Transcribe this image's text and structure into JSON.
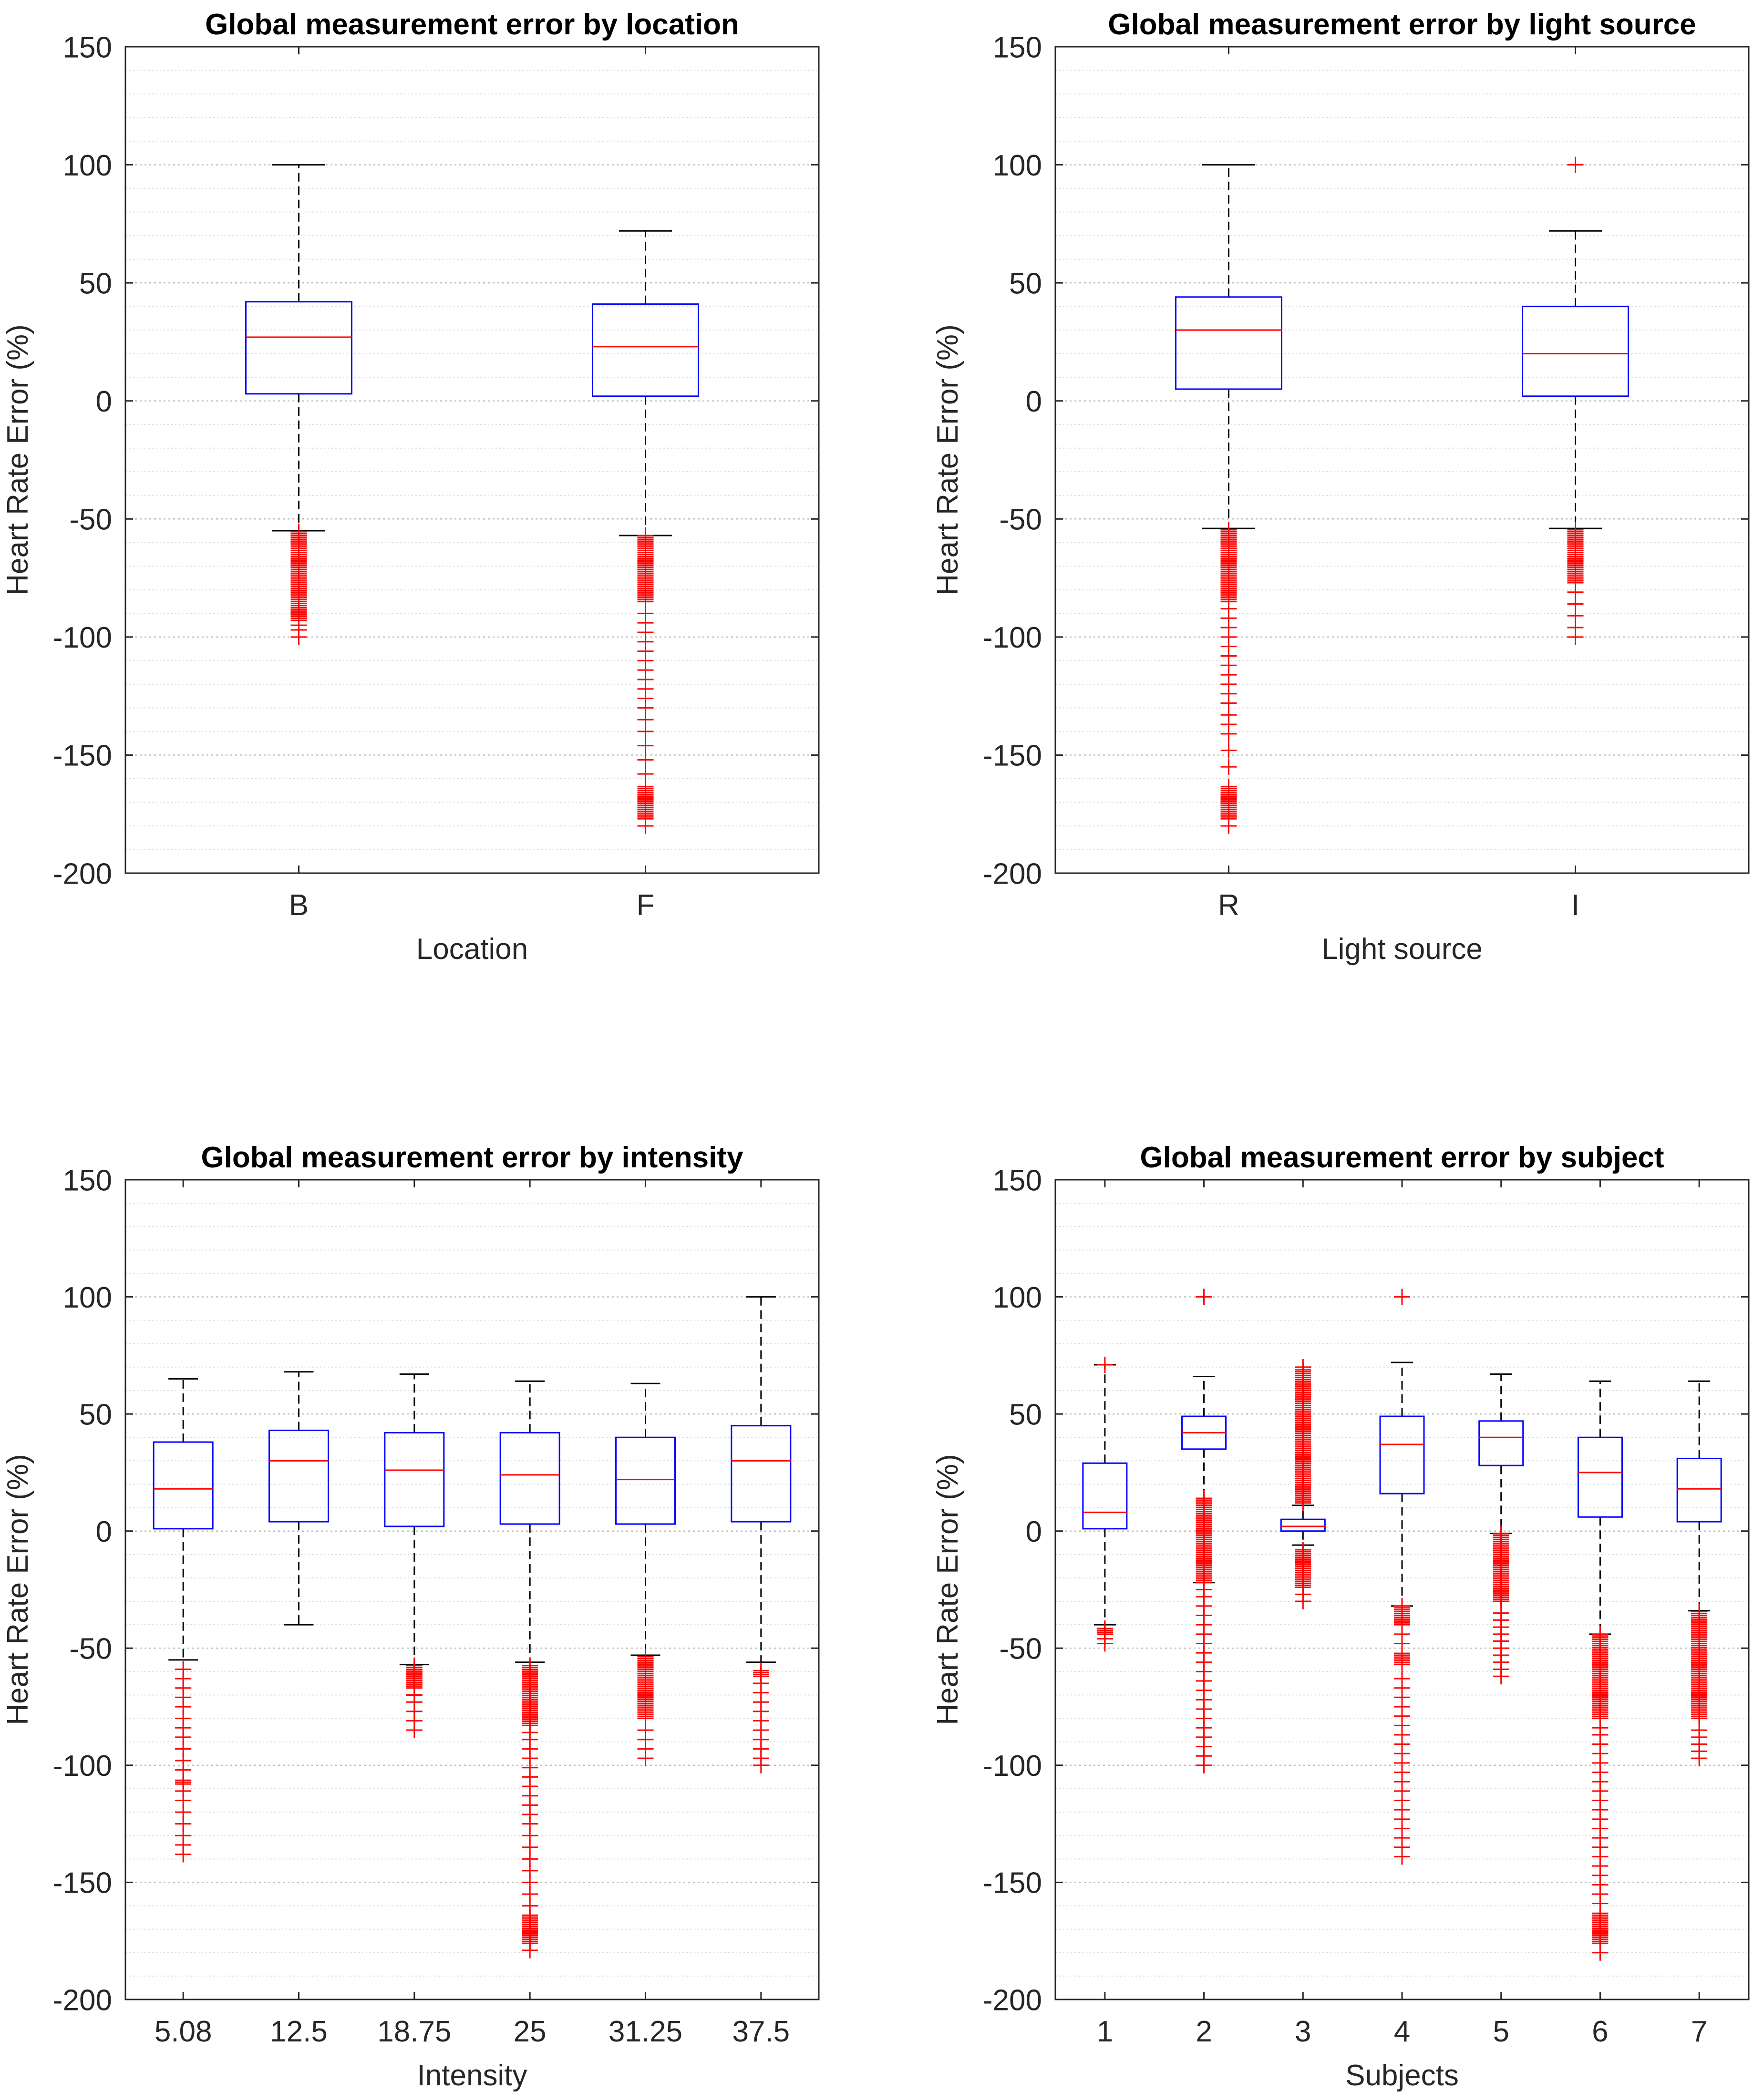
{
  "colors": {
    "box": "#0000ff",
    "median": "#ff0000",
    "outlier": "#ff0000",
    "whisker": "#000000",
    "axis": "#262626",
    "grid_major": "#bdbdbd",
    "grid_minor": "#dcdcdc"
  },
  "chart_data": [
    {
      "type": "box",
      "title": "Global measurement error by location",
      "xlabel": "Location",
      "ylabel": "Heart Rate Error (%)",
      "ylim": [
        -200,
        150
      ],
      "yticks": [
        -200,
        -150,
        -100,
        -50,
        0,
        50,
        100,
        150
      ],
      "grid": "y-major-and-minor",
      "categories": [
        "B",
        "F"
      ],
      "boxes": [
        {
          "whisker_low": -55,
          "q1": 3,
          "median": 27,
          "q3": 42,
          "whisker_high": 100,
          "outliers": {
            "dense": [
              [
                -93,
                -55
              ]
            ],
            "points": [
              -100,
              -97,
              -95
            ]
          }
        },
        {
          "whisker_low": -57,
          "q1": 2,
          "median": 23,
          "q3": 41,
          "whisker_high": 72,
          "outliers": {
            "dense": [
              [
                -177,
                -163
              ],
              [
                -85,
                -57
              ]
            ],
            "points": [
              -180,
              -158,
              -152,
              -146,
              -140,
              -135,
              -130,
              -126,
              -122,
              -118,
              -114,
              -110,
              -106,
              -102,
              -98,
              -94,
              -90
            ]
          }
        }
      ]
    },
    {
      "type": "box",
      "title": "Global measurement error by light source",
      "xlabel": "Light source",
      "ylabel": "Heart Rate Error (%)",
      "ylim": [
        -200,
        150
      ],
      "yticks": [
        -200,
        -150,
        -100,
        -50,
        0,
        50,
        100,
        150
      ],
      "grid": "y-major-and-minor",
      "categories": [
        "R",
        "I"
      ],
      "boxes": [
        {
          "whisker_low": -54,
          "q1": 5,
          "median": 30,
          "q3": 44,
          "whisker_high": 100,
          "outliers": {
            "dense": [
              [
                -177,
                -163
              ],
              [
                -85,
                -54
              ]
            ],
            "points": [
              -180,
              -155,
              -148,
              -141,
              -137,
              -133,
              -128,
              -124,
              -120,
              -116,
              -112,
              -108,
              -104,
              -100,
              -96,
              -92,
              -88
            ]
          }
        },
        {
          "whisker_low": -54,
          "q1": 2,
          "median": 20,
          "q3": 40,
          "whisker_high": 72,
          "outliers": {
            "dense": [
              [
                -77,
                -54
              ]
            ],
            "points": [
              100,
              -100,
              -96,
              -91,
              -86,
              -81
            ]
          }
        }
      ]
    },
    {
      "type": "box",
      "title": "Global measurement error by intensity",
      "xlabel": "Intensity",
      "ylabel": "Heart Rate Error (%)",
      "ylim": [
        -200,
        150
      ],
      "yticks": [
        -200,
        -150,
        -100,
        -50,
        0,
        50,
        100,
        150
      ],
      "grid": "y-major-and-minor",
      "categories": [
        "5.08",
        "12.5",
        "18.75",
        "25",
        "31.25",
        "37.5"
      ],
      "boxes": [
        {
          "whisker_low": -55,
          "q1": 1,
          "median": 18,
          "q3": 38,
          "whisker_high": 65,
          "outliers": {
            "dense": [
              [
                -108,
                -106
              ]
            ],
            "points": [
              -138,
              -134,
              -130,
              -125,
              -120,
              -115,
              -111,
              -102,
              -98,
              -93,
              -88,
              -84,
              -80,
              -75,
              -71,
              -67,
              -63,
              -59
            ]
          }
        },
        {
          "whisker_low": -40,
          "q1": 4,
          "median": 30,
          "q3": 43,
          "whisker_high": 68,
          "outliers": {
            "dense": [],
            "points": []
          }
        },
        {
          "whisker_low": -57,
          "q1": 2,
          "median": 26,
          "q3": 42,
          "whisker_high": 67,
          "outliers": {
            "dense": [
              [
                -67,
                -57
              ]
            ],
            "points": [
              -85,
              -81,
              -77,
              -73,
              -70
            ]
          }
        },
        {
          "whisker_low": -56,
          "q1": 3,
          "median": 24,
          "q3": 42,
          "whisker_high": 64,
          "outliers": {
            "dense": [
              [
                -176,
                -164
              ],
              [
                -83,
                -57
              ]
            ],
            "points": [
              -179,
              -160,
              -155,
              -150,
              -145,
              -140,
              -135,
              -130,
              -125,
              -121,
              -117,
              -113,
              -109,
              -105,
              -101,
              -97,
              -93,
              -89,
              -86
            ]
          }
        },
        {
          "whisker_low": -53,
          "q1": 3,
          "median": 22,
          "q3": 40,
          "whisker_high": 63,
          "outliers": {
            "dense": [
              [
                -80,
                -53
              ]
            ],
            "points": [
              -97,
              -93,
              -89,
              -85
            ]
          }
        },
        {
          "whisker_low": -56,
          "q1": 4,
          "median": 30,
          "q3": 45,
          "whisker_high": 100,
          "outliers": {
            "dense": [
              [
                -62,
                -59
              ]
            ],
            "points": [
              -100,
              -97,
              -93,
              -89,
              -85,
              -81,
              -77,
              -73,
              -69,
              -65
            ]
          }
        }
      ]
    },
    {
      "type": "box",
      "title": "Global measurement error by subject",
      "xlabel": "Subjects",
      "ylabel": "Heart Rate Error (%)",
      "ylim": [
        -200,
        150
      ],
      "yticks": [
        -200,
        -150,
        -100,
        -50,
        0,
        50,
        100,
        150
      ],
      "grid": "y-major-and-minor",
      "categories": [
        "1",
        "2",
        "3",
        "4",
        "5",
        "6",
        "7"
      ],
      "boxes": [
        {
          "whisker_low": -40,
          "q1": 1,
          "median": 8,
          "q3": 29,
          "whisker_high": 71,
          "outliers": {
            "dense": [
              [
                -44,
                -41
              ]
            ],
            "points": [
              -48,
              -46,
              71
            ]
          }
        },
        {
          "whisker_low": -22,
          "q1": 35,
          "median": 42,
          "q3": 49,
          "whisker_high": 66,
          "outliers": {
            "dense": [
              [
                -22,
                14
              ]
            ],
            "points": [
              100,
              -100,
              -96,
              -92,
              -88,
              -84,
              -80,
              -76,
              -72,
              -68,
              -64,
              -60,
              -56,
              -52,
              -48,
              -44,
              -40,
              -36,
              -32,
              -28,
              -25
            ]
          }
        },
        {
          "whisker_low": -6,
          "q1": 0,
          "median": 2,
          "q3": 5,
          "whisker_high": 11,
          "outliers": {
            "dense": [
              [
                12,
                69
              ],
              [
                -24,
                -8
              ]
            ],
            "points": [
              -30,
              -27,
              70
            ]
          }
        },
        {
          "whisker_low": -32,
          "q1": 16,
          "median": 37,
          "q3": 49,
          "whisker_high": 72,
          "outliers": {
            "dense": [
              [
                -40,
                -32
              ],
              [
                -57,
                -52
              ]
            ],
            "points": [
              100,
              -139,
              -135,
              -131,
              -127,
              -123,
              -119,
              -115,
              -111,
              -107,
              -103,
              -99,
              -95,
              -91,
              -87,
              -83,
              -79,
              -75,
              -71,
              -67,
              -63,
              -48,
              -44
            ]
          }
        },
        {
          "whisker_low": -1,
          "q1": 28,
          "median": 40,
          "q3": 47,
          "whisker_high": 67,
          "outliers": {
            "dense": [
              [
                -30,
                -1
              ]
            ],
            "points": [
              -62,
              -59,
              -56,
              -53,
              -50,
              -47,
              -44,
              -41,
              -38,
              -35
            ]
          }
        },
        {
          "whisker_low": -44,
          "q1": 6,
          "median": 25,
          "q3": 40,
          "whisker_high": 64,
          "outliers": {
            "dense": [
              [
                -176,
                -163
              ],
              [
                -80,
                -44
              ]
            ],
            "points": [
              -180,
              -159,
              -155,
              -151,
              -147,
              -143,
              -139,
              -135,
              -131,
              -127,
              -123,
              -119,
              -115,
              -111,
              -107,
              -103,
              -99,
              -95,
              -91,
              -87,
              -84
            ]
          }
        },
        {
          "whisker_low": -34,
          "q1": 4,
          "median": 18,
          "q3": 31,
          "whisker_high": 64,
          "outliers": {
            "dense": [
              [
                -80,
                -34
              ]
            ],
            "points": [
              -97,
              -94,
              -91,
              -88,
              -85
            ]
          }
        }
      ]
    }
  ]
}
